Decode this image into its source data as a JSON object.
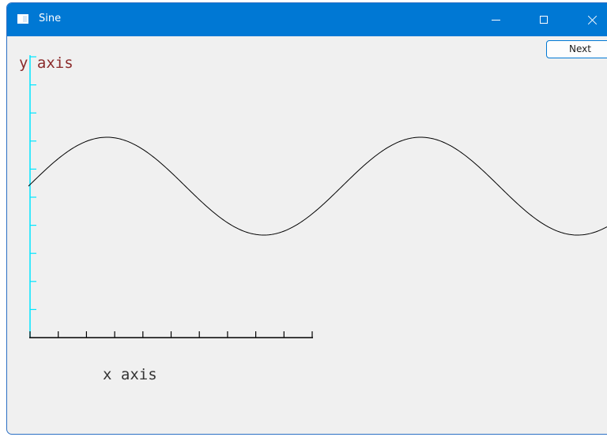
{
  "window": {
    "title": "Sine"
  },
  "buttons": {
    "next_label": "Next"
  },
  "plot": {
    "y_axis_label": "y axis",
    "x_axis_label": "x axis"
  },
  "colors": {
    "titlebar": "#0078d4",
    "y_axis": "#00e5ff",
    "x_axis": "#000000",
    "y_label": "#8b2a2a",
    "x_label": "#333333",
    "curve": "#000000"
  },
  "icons": [
    "app-window-icon",
    "minimize-icon",
    "maximize-icon",
    "close-icon"
  ]
}
